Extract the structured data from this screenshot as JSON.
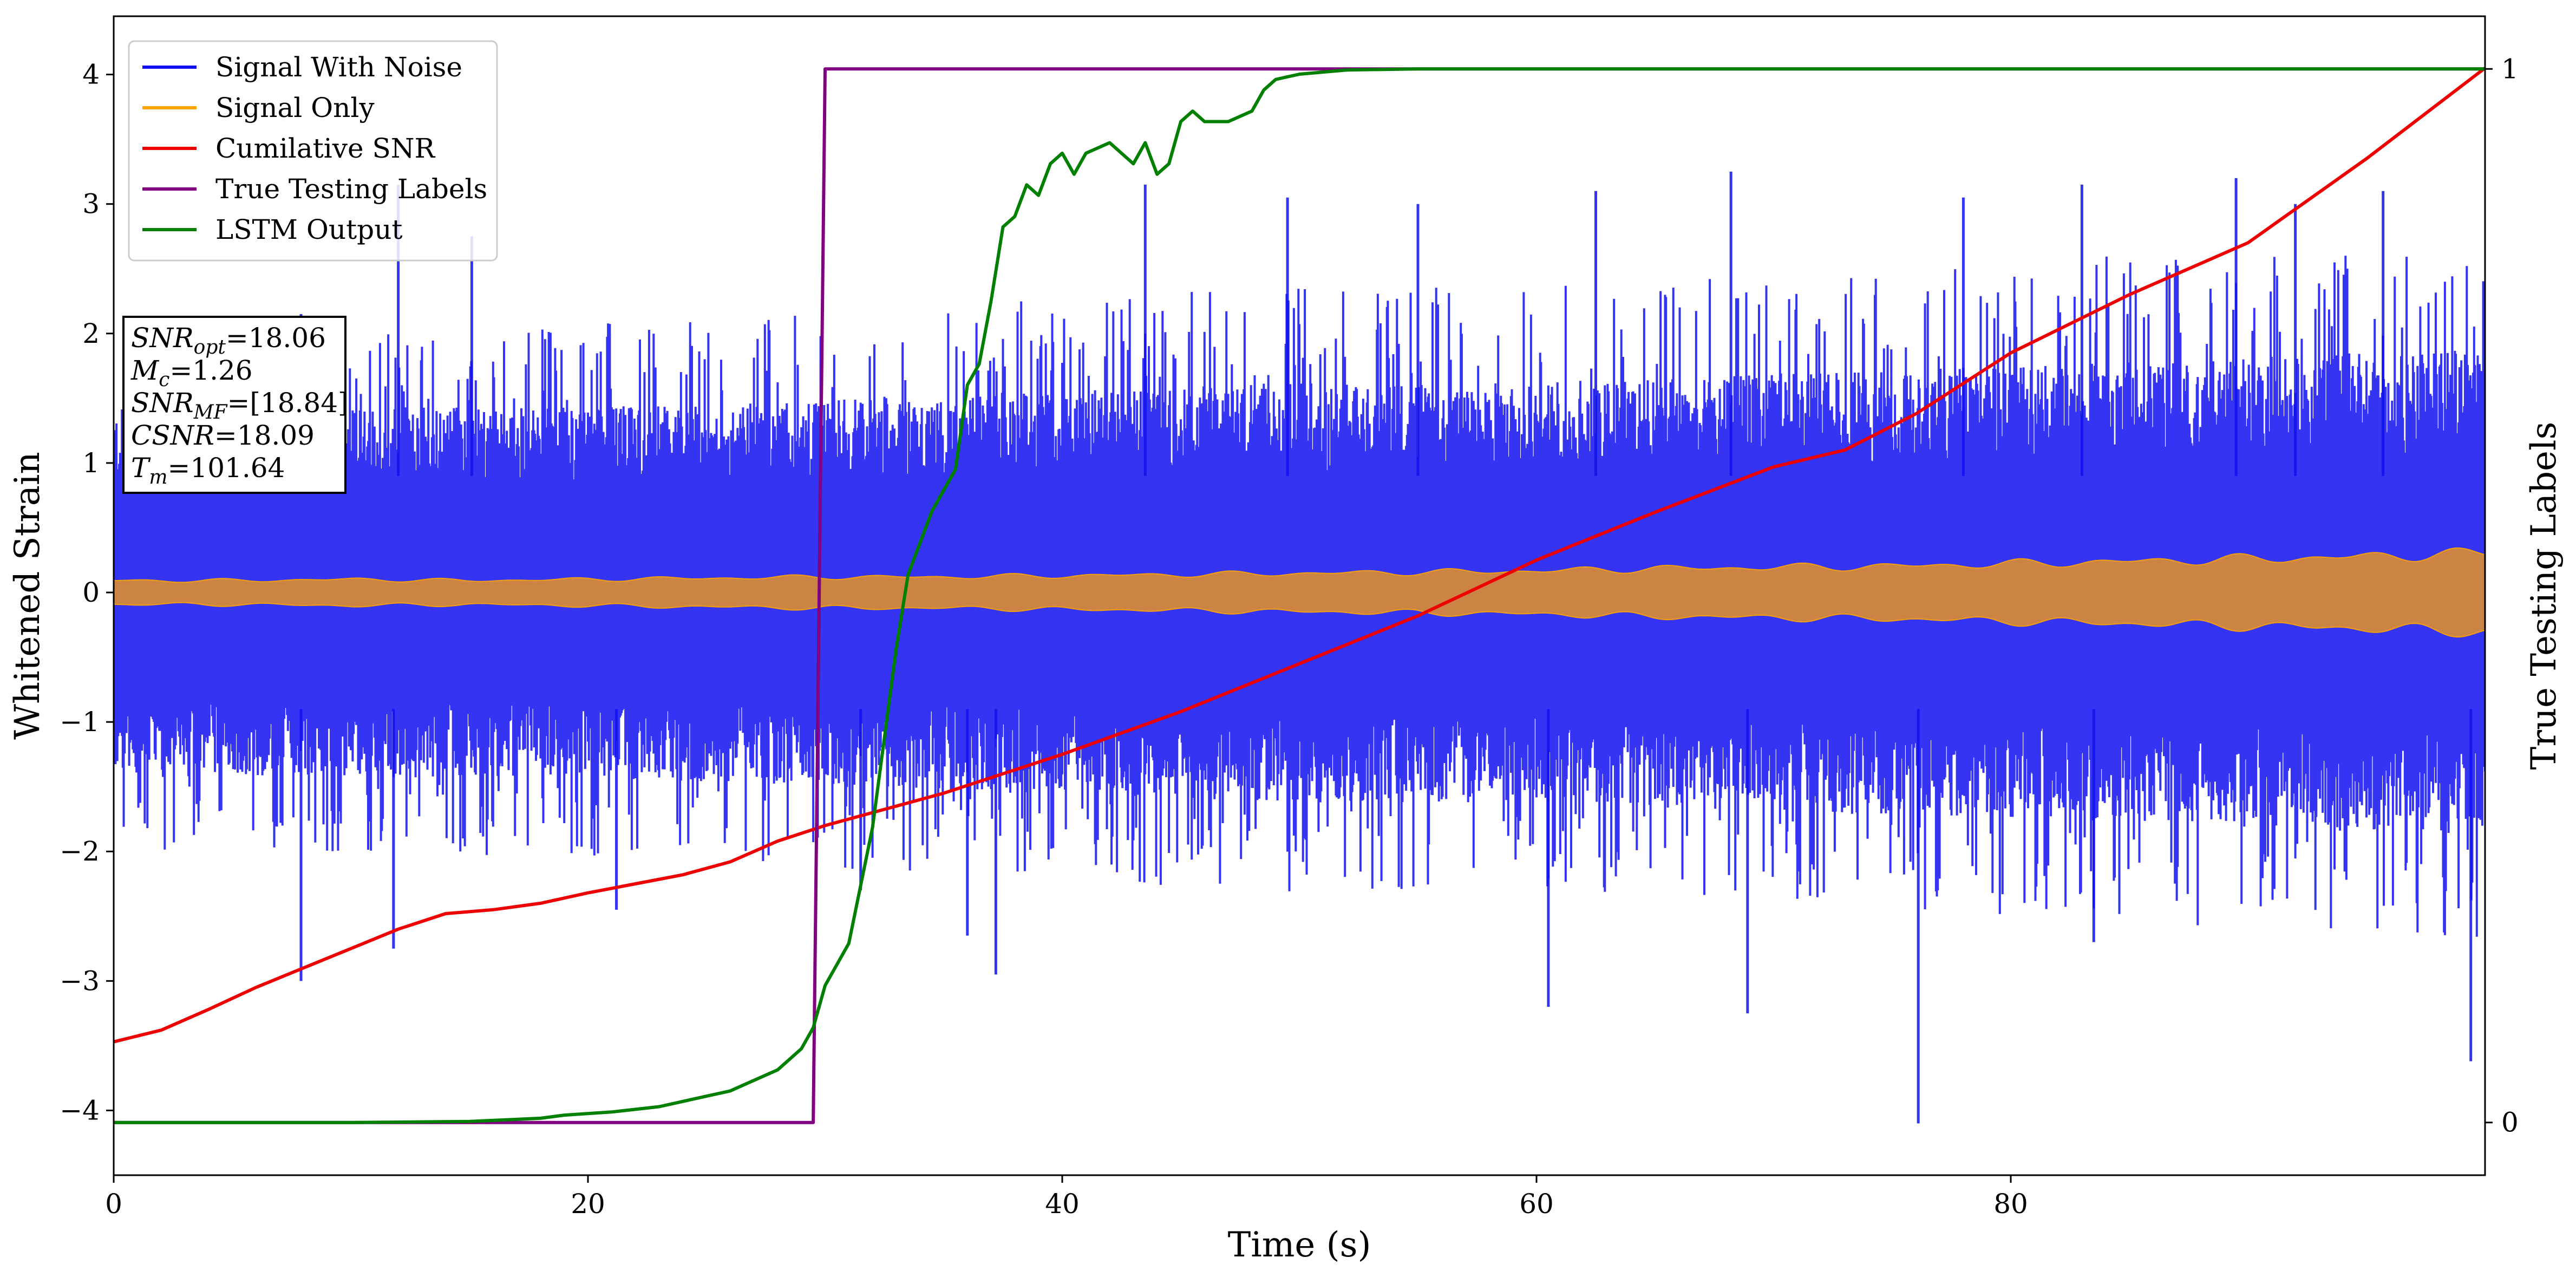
{
  "chart_data": {
    "type": "line",
    "xlabel": "Time (s)",
    "ylabel": "Whitened Strain",
    "y2label": "True Testing Labels",
    "xlim": [
      0,
      100
    ],
    "ylim": [
      -4.5,
      4.45
    ],
    "y2lim": [
      -0.05,
      1.05
    ],
    "x_ticks": [
      0,
      20,
      40,
      60,
      80
    ],
    "x_tick_labels": [
      "0",
      "20",
      "40",
      "60",
      "80"
    ],
    "y_ticks": [
      -4,
      -3,
      -2,
      -1,
      0,
      1,
      2,
      3,
      4
    ],
    "y_tick_labels": [
      "−4",
      "−3",
      "−2",
      "−1",
      "0",
      "1",
      "2",
      "3",
      "4"
    ],
    "y2_ticks": [
      0,
      1
    ],
    "y2_tick_labels": [
      "0",
      "1"
    ],
    "grid": false,
    "legend_position": "top-left",
    "series": [
      {
        "name": "Signal With Noise",
        "color": "#1010f0",
        "axis": "left",
        "band_envelope": {
          "x": [
            0,
            10,
            20,
            29.5,
            40,
            50,
            60,
            70,
            80,
            90,
            100
          ],
          "typical_high": [
            1.1,
            1.1,
            1.1,
            1.15,
            1.2,
            1.25,
            1.25,
            1.3,
            1.35,
            1.4,
            1.45
          ],
          "typical_low": [
            -1.1,
            -1.1,
            -1.1,
            -1.15,
            -1.2,
            -1.25,
            -1.25,
            -1.3,
            -1.35,
            -1.4,
            -1.45
          ]
        },
        "spikes": [
          {
            "x": 7.9,
            "y": 2.15
          },
          {
            "x": 12,
            "y": 3.15
          },
          {
            "x": 15.1,
            "y": 2.75
          },
          {
            "x": 36,
            "y": -2.65
          },
          {
            "x": 43.5,
            "y": 3.15
          },
          {
            "x": 49.5,
            "y": 3.05
          },
          {
            "x": 55,
            "y": 3.0
          },
          {
            "x": 62.5,
            "y": 3.1
          },
          {
            "x": 68.2,
            "y": 3.25
          },
          {
            "x": 78,
            "y": 3.05
          },
          {
            "x": 83,
            "y": 3.15
          },
          {
            "x": 89.5,
            "y": 3.2
          },
          {
            "x": 92,
            "y": 3.0
          },
          {
            "x": 95.7,
            "y": 3.1
          },
          {
            "x": 7.9,
            "y": -3.0
          },
          {
            "x": 11.8,
            "y": -2.75
          },
          {
            "x": 37.2,
            "y": -2.95
          },
          {
            "x": 60.5,
            "y": -3.2
          },
          {
            "x": 68.9,
            "y": -3.25
          },
          {
            "x": 76.1,
            "y": -4.1
          },
          {
            "x": 83.5,
            "y": -2.7
          },
          {
            "x": 99.4,
            "y": -3.62
          },
          {
            "x": 31.5,
            "y": -2.3
          },
          {
            "x": 21.2,
            "y": -2.45
          }
        ]
      },
      {
        "name": "Signal Only",
        "color": "#ffa500",
        "axis": "left",
        "envelope": {
          "x": [
            0,
            5,
            10,
            15,
            20,
            25,
            30,
            35,
            40,
            45,
            50,
            55,
            60,
            65,
            70,
            75,
            80,
            85,
            90,
            95,
            100
          ],
          "amplitude": [
            0.1,
            0.1,
            0.11,
            0.1,
            0.11,
            0.12,
            0.13,
            0.13,
            0.14,
            0.15,
            0.16,
            0.17,
            0.18,
            0.2,
            0.21,
            0.22,
            0.24,
            0.26,
            0.28,
            0.3,
            0.33
          ]
        }
      },
      {
        "name": "Cumilative SNR",
        "color": "#ee0000",
        "axis": "left",
        "x": [
          0,
          2,
          4,
          6,
          8,
          10,
          12,
          14,
          16,
          18,
          20,
          22,
          24,
          26,
          28,
          30,
          35,
          40,
          45,
          50,
          55,
          60,
          65,
          70,
          73,
          76,
          80,
          85,
          90,
          95,
          100
        ],
        "y": [
          -3.47,
          -3.38,
          -3.22,
          -3.05,
          -2.9,
          -2.75,
          -2.6,
          -2.48,
          -2.45,
          -2.4,
          -2.32,
          -2.25,
          -2.18,
          -2.08,
          -1.92,
          -1.8,
          -1.55,
          -1.25,
          -0.92,
          -0.55,
          -0.18,
          0.25,
          0.62,
          0.97,
          1.1,
          1.38,
          1.85,
          2.3,
          2.7,
          3.35,
          4.05
        ]
      },
      {
        "name": "True Testing Labels",
        "color": "#800080",
        "axis": "right",
        "x": [
          0,
          29.5,
          30.0,
          100
        ],
        "y": [
          0,
          0,
          1,
          1
        ]
      },
      {
        "name": "LSTM Output",
        "color": "#008000",
        "axis": "right",
        "x": [
          0,
          10,
          15,
          18,
          19,
          21,
          23,
          25,
          26,
          27,
          28,
          29,
          29.5,
          30,
          31,
          32,
          33,
          33.5,
          34.5,
          35.5,
          36,
          36.5,
          37,
          37.5,
          38,
          38.5,
          39,
          39.5,
          40,
          40.5,
          41,
          42,
          43,
          43.5,
          44,
          44.5,
          45,
          45.5,
          46,
          47,
          48,
          48.5,
          49,
          50,
          52,
          55,
          60,
          100
        ],
        "y": [
          0,
          0,
          0.001,
          0.004,
          0.007,
          0.01,
          0.015,
          0.025,
          0.03,
          0.04,
          0.05,
          0.07,
          0.09,
          0.13,
          0.17,
          0.28,
          0.45,
          0.52,
          0.58,
          0.62,
          0.7,
          0.72,
          0.78,
          0.85,
          0.86,
          0.89,
          0.88,
          0.91,
          0.92,
          0.9,
          0.92,
          0.93,
          0.91,
          0.93,
          0.9,
          0.91,
          0.95,
          0.96,
          0.95,
          0.95,
          0.96,
          0.98,
          0.99,
          0.995,
          0.999,
          1,
          1,
          1
        ]
      }
    ],
    "annotation_lines": [
      {
        "prefix": "SNR",
        "sub": "opt",
        "suffix": "=18.06"
      },
      {
        "prefix": "M",
        "sub": "c",
        "suffix": "=1.26"
      },
      {
        "prefix": "SNR",
        "sub": "MF",
        "suffix": "=[18.84]"
      },
      {
        "prefix": "CSNR",
        "sub": "",
        "suffix": "=18.09"
      },
      {
        "prefix": "T",
        "sub": "m",
        "suffix": "=101.64"
      }
    ]
  }
}
